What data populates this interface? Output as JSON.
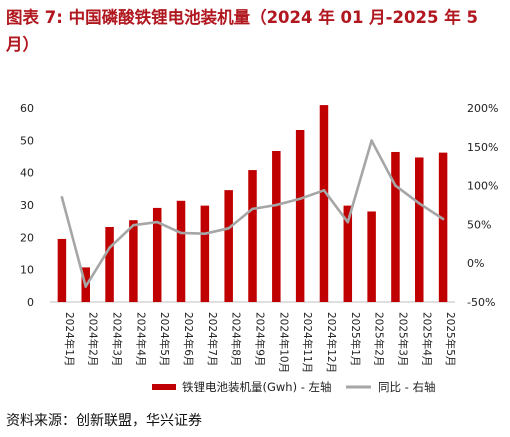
{
  "figure": {
    "title": "图表 7: 中国磷酸铁锂电池装机量（2024 年 01 月-2025 年 5 月）",
    "source": "资料来源：创新联盟，华兴证券"
  },
  "chart_data": {
    "type": "bar",
    "categories": [
      "2024年1月",
      "2024年2月",
      "2024年3月",
      "2024年4月",
      "2024年5月",
      "2024年6月",
      "2024年7月",
      "2024年8月",
      "2024年9月",
      "2024年10月",
      "2024年11月",
      "2024年12月",
      "2025年1月",
      "2025年2月",
      "2025年3月",
      "2025年4月",
      "2025年5月"
    ],
    "series": [
      {
        "name": "铁锂电池装机量(Gwh) - 左轴",
        "type": "bar",
        "axis": "left",
        "color": "#c00000",
        "values": [
          19.5,
          10.7,
          23.2,
          25.3,
          29.1,
          31.3,
          29.8,
          34.6,
          40.8,
          46.7,
          53.2,
          60.9,
          29.8,
          28.0,
          46.4,
          44.7,
          46.2
        ]
      },
      {
        "name": "同比 - 右轴",
        "type": "line",
        "axis": "right",
        "color": "#a6a6a6",
        "values": [
          85,
          -30,
          20,
          49,
          53,
          39,
          38,
          45,
          70,
          75,
          83,
          94,
          53,
          158,
          100,
          77,
          57
        ]
      }
    ],
    "y_left": {
      "min": 0,
      "max": 60,
      "ticks": [
        0,
        10,
        20,
        30,
        40,
        50,
        60
      ]
    },
    "y_right": {
      "min": -50,
      "max": 200,
      "ticks": [
        -50,
        0,
        50,
        100,
        150,
        200
      ],
      "tick_labels": [
        "-50%",
        "0%",
        "50%",
        "100%",
        "150%",
        "200%"
      ]
    },
    "legend": {
      "position": "bottom"
    },
    "grid": false
  }
}
